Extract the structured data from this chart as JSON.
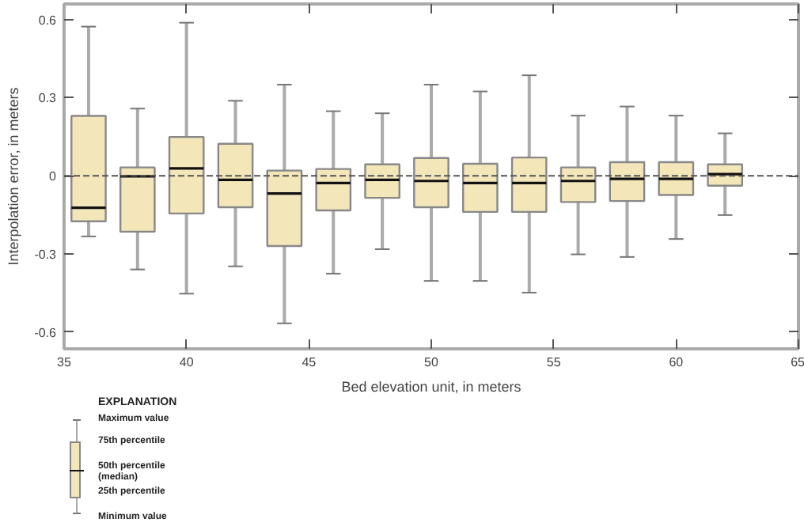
{
  "chart_data": {
    "type": "box",
    "xlabel": "Bed elevation unit, in meters",
    "ylabel": "Interpolation error, in meters",
    "x": [
      36,
      38,
      40,
      42,
      44,
      46,
      48,
      50,
      52,
      54,
      56,
      58,
      60,
      62
    ],
    "boxes": [
      {
        "low": -0.233,
        "q1": -0.175,
        "median": -0.123,
        "q3": 0.23,
        "high": 0.573
      },
      {
        "low": -0.36,
        "q1": -0.215,
        "median": -0.002,
        "q3": 0.032,
        "high": 0.258
      },
      {
        "low": -0.453,
        "q1": -0.145,
        "median": 0.028,
        "q3": 0.149,
        "high": 0.588
      },
      {
        "low": -0.348,
        "q1": -0.121,
        "median": -0.016,
        "q3": 0.123,
        "high": 0.288
      },
      {
        "low": -0.567,
        "q1": -0.27,
        "median": -0.068,
        "q3": 0.02,
        "high": 0.35
      },
      {
        "low": -0.376,
        "q1": -0.133,
        "median": -0.028,
        "q3": 0.026,
        "high": 0.248
      },
      {
        "low": -0.282,
        "q1": -0.085,
        "median": -0.016,
        "q3": 0.044,
        "high": 0.24
      },
      {
        "low": -0.404,
        "q1": -0.121,
        "median": -0.02,
        "q3": 0.068,
        "high": 0.35
      },
      {
        "low": -0.404,
        "q1": -0.139,
        "median": -0.028,
        "q3": 0.046,
        "high": 0.324
      },
      {
        "low": -0.449,
        "q1": -0.139,
        "median": -0.028,
        "q3": 0.07,
        "high": 0.386
      },
      {
        "low": -0.302,
        "q1": -0.101,
        "median": -0.02,
        "q3": 0.032,
        "high": 0.231
      },
      {
        "low": -0.312,
        "q1": -0.097,
        "median": -0.012,
        "q3": 0.052,
        "high": 0.266
      },
      {
        "low": -0.243,
        "q1": -0.074,
        "median": -0.012,
        "q3": 0.052,
        "high": 0.231
      },
      {
        "low": -0.151,
        "q1": -0.038,
        "median": 0.006,
        "q3": 0.044,
        "high": 0.163
      }
    ],
    "color": "#f3e6b9",
    "xlim": [
      35,
      65
    ],
    "xticks": [
      35,
      40,
      45,
      50,
      55,
      60,
      65
    ],
    "ylim": [
      -0.665,
      0.66
    ],
    "yticks": [
      {
        "value": -0.6,
        "label": "-0.6"
      },
      {
        "value": -0.3,
        "label": "-0.3"
      },
      0,
      0.3,
      0.6
    ],
    "ref_lines": [
      {
        "axis": "y",
        "value": 0,
        "line_style": "dashed",
        "color": "#555555"
      }
    ],
    "grid": false,
    "annotations": [
      "EXPLANATION",
      "Maximum value",
      "75th percentile",
      "50th percentile (median)",
      "25th percentile",
      "Minimum value"
    ]
  }
}
